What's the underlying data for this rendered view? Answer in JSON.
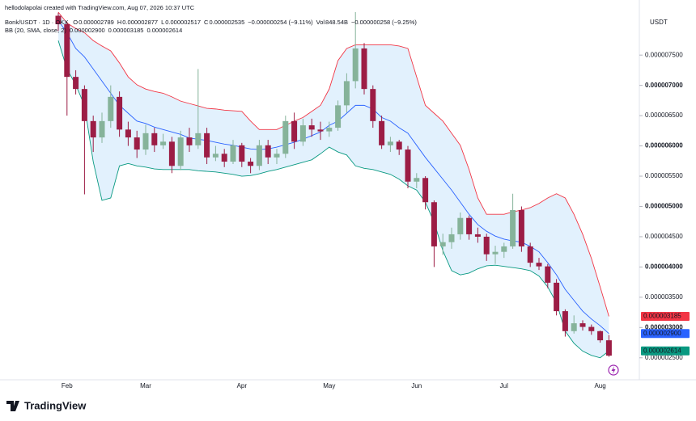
{
  "header": {
    "attribution": "hellodolapolai created with TradingView.com, Aug 07, 2026 10:37 UTC",
    "symbol": "Bonk/USDT · 1D · OKX",
    "ohlc": [
      {
        "label": "O",
        "value": "0.000002789"
      },
      {
        "label": "H",
        "value": "0.000002877"
      },
      {
        "label": "L",
        "value": "0.000002517"
      },
      {
        "label": "C",
        "value": "0.000002535"
      }
    ],
    "change": "−0.000000254 (−9.11%)",
    "volume_label": "Vol",
    "volume": "848.54B",
    "volume_change": "−0.000000258 (−9.25%)",
    "currency": "USDT",
    "logo": "TradingView"
  },
  "chart_data": {
    "type": "candlestick",
    "categories": [
      null,
      "Feb",
      null,
      null,
      null,
      null,
      null,
      null,
      null,
      null,
      "Mar",
      null,
      null,
      null,
      null,
      null,
      null,
      null,
      null,
      null,
      null,
      "Apr",
      null,
      null,
      null,
      null,
      null,
      null,
      null,
      null,
      null,
      "May",
      null,
      null,
      null,
      null,
      null,
      null,
      null,
      null,
      null,
      "Jun",
      null,
      null,
      null,
      null,
      null,
      null,
      null,
      null,
      null,
      "Jul",
      null,
      null,
      null,
      null,
      null,
      null,
      null,
      null,
      null,
      null,
      "Aug",
      null
    ],
    "open": [
      8.15e-06,
      8.01e-06,
      7.14e-06,
      6.94e-06,
      6.41e-06,
      6.14e-06,
      6.41e-06,
      6.81e-06,
      6.27e-06,
      6.14e-06,
      5.94e-06,
      6.21e-06,
      6.01e-06,
      6.07e-06,
      5.67e-06,
      6.14e-06,
      6.01e-06,
      6.21e-06,
      5.81e-06,
      5.87e-06,
      5.74e-06,
      6.01e-06,
      5.74e-06,
      5.67e-06,
      6.01e-06,
      5.81e-06,
      5.87e-06,
      6.41e-06,
      6.07e-06,
      6.34e-06,
      6.27e-06,
      6.24e-06,
      6.3e-06,
      6.67e-06,
      7.07e-06,
      7.61e-06,
      6.94e-06,
      6.41e-06,
      6.01e-06,
      6.07e-06,
      5.94e-06,
      5.41e-06,
      5.47e-06,
      5.07e-06,
      4.34e-06,
      4.41e-06,
      4.54e-06,
      4.81e-06,
      4.54e-06,
      4.5e-06,
      4.21e-06,
      4.25e-06,
      4.34e-06,
      4.94e-06,
      4.34e-06,
      4.07e-06,
      4.01e-06,
      3.74e-06,
      3.27e-06,
      2.94e-06,
      3.07e-06,
      3.01e-06,
      2.94e-06,
      2.789e-06
    ],
    "high": [
      8.2e-06,
      8.05e-06,
      7.25e-06,
      7e-06,
      6.5e-06,
      6.55e-06,
      7e-06,
      6.9e-06,
      6.4e-06,
      6.25e-06,
      6.35e-06,
      6.3e-06,
      6.2e-06,
      6.15e-06,
      6.25e-06,
      6.3e-06,
      7.27e-06,
      6.3e-06,
      6e-06,
      5.95e-06,
      6.1e-06,
      6.05e-06,
      5.8e-06,
      6.1e-06,
      6.1e-06,
      5.95e-06,
      6.5e-06,
      6.55e-06,
      6.45e-06,
      6.45e-06,
      6.4e-06,
      6.4e-06,
      6.75e-06,
      7.2e-06,
      8.21e-06,
      7.7e-06,
      7e-06,
      6.5e-06,
      6.15e-06,
      6.1e-06,
      6e-06,
      5.55e-06,
      5.5e-06,
      5.1e-06,
      4.55e-06,
      4.65e-06,
      4.9e-06,
      4.85e-06,
      4.65e-06,
      4.55e-06,
      4.35e-06,
      4.4e-06,
      5.21e-06,
      5e-06,
      4.4e-06,
      4.15e-06,
      4.05e-06,
      3.8e-06,
      3.3e-06,
      3.2e-06,
      3.12e-06,
      3.05e-06,
      2.95e-06,
      2.877e-06
    ],
    "low": [
      7.9e-06,
      6.5e-06,
      6.85e-06,
      5.2e-06,
      5.9e-06,
      6.05e-06,
      6.3e-06,
      6.15e-06,
      6e-06,
      5.8e-06,
      5.85e-06,
      5.9e-06,
      5.95e-06,
      5.55e-06,
      5.6e-06,
      5.9e-06,
      5.95e-06,
      5.7e-06,
      5.75e-06,
      5.65e-06,
      5.7e-06,
      5.65e-06,
      5.55e-06,
      5.6e-06,
      5.7e-06,
      5.7e-06,
      5.8e-06,
      5.95e-06,
      6e-06,
      6.15e-06,
      6.1e-06,
      6.15e-06,
      6.25e-06,
      6.55e-06,
      6.95e-06,
      6.85e-06,
      6.3e-06,
      5.95e-06,
      5.9e-06,
      5.85e-06,
      5.3e-06,
      5.3e-06,
      4.95e-06,
      4e-06,
      4.2e-06,
      4.3e-06,
      4.45e-06,
      4.45e-06,
      4.4e-06,
      4.1e-06,
      4.05e-06,
      4.15e-06,
      4.3e-06,
      4.25e-06,
      4e-06,
      3.95e-06,
      3.65e-06,
      3.2e-06,
      2.85e-06,
      2.9e-06,
      2.95e-06,
      2.88e-06,
      2.75e-06,
      2.517e-06
    ],
    "close": [
      8.01e-06,
      7.14e-06,
      6.94e-06,
      6.41e-06,
      6.14e-06,
      6.41e-06,
      6.81e-06,
      6.27e-06,
      6.14e-06,
      5.94e-06,
      6.21e-06,
      6.01e-06,
      6.07e-06,
      5.67e-06,
      6.14e-06,
      6.01e-06,
      6.21e-06,
      5.81e-06,
      5.87e-06,
      5.74e-06,
      6.01e-06,
      5.74e-06,
      5.67e-06,
      6.01e-06,
      5.81e-06,
      5.87e-06,
      6.41e-06,
      6.07e-06,
      6.34e-06,
      6.27e-06,
      6.24e-06,
      6.3e-06,
      6.67e-06,
      7.07e-06,
      7.61e-06,
      6.94e-06,
      6.41e-06,
      6.01e-06,
      6.07e-06,
      5.94e-06,
      5.41e-06,
      5.47e-06,
      5.07e-06,
      4.34e-06,
      4.41e-06,
      4.54e-06,
      4.81e-06,
      4.54e-06,
      4.5e-06,
      4.21e-06,
      4.25e-06,
      4.34e-06,
      4.94e-06,
      4.34e-06,
      4.07e-06,
      4.01e-06,
      3.74e-06,
      3.27e-06,
      2.94e-06,
      3.07e-06,
      3.01e-06,
      2.94e-06,
      2.789e-06,
      2.535e-06
    ],
    "up_color": "#86b39a",
    "down_color": "#9c1d45",
    "bollinger": {
      "label": "BB (20, SMA, close, 2)",
      "fill": "rgba(33,150,243,0.13)",
      "series": [
        {
          "color": "#2962ff",
          "value_label": "0.000002900",
          "values": [
            8.07e-06,
            7.87e-06,
            7.61e-06,
            7.47e-06,
            7.27e-06,
            7.07e-06,
            6.87e-06,
            6.67e-06,
            6.54e-06,
            6.41e-06,
            6.37e-06,
            6.31e-06,
            6.27e-06,
            6.23e-06,
            6.19e-06,
            6.13e-06,
            6.11e-06,
            6.09e-06,
            6.06e-06,
            6.03e-06,
            6.01e-06,
            5.98e-06,
            5.95e-06,
            5.94e-06,
            5.95e-06,
            5.98e-06,
            6.02e-06,
            6.06e-06,
            6.11e-06,
            6.17e-06,
            6.23e-06,
            6.34e-06,
            6.41e-06,
            6.54e-06,
            6.67e-06,
            6.67e-06,
            6.61e-06,
            6.47e-06,
            6.41e-06,
            6.3e-06,
            6.21e-06,
            6.01e-06,
            5.81e-06,
            5.63e-06,
            5.45e-06,
            5.27e-06,
            5.07e-06,
            4.87e-06,
            4.7e-06,
            4.59e-06,
            4.51e-06,
            4.46e-06,
            4.43e-06,
            4.41e-06,
            4.34e-06,
            4.25e-06,
            4.07e-06,
            3.87e-06,
            3.63e-06,
            3.45e-06,
            3.27e-06,
            3.14e-06,
            3.03e-06,
            2.9e-06
          ]
        },
        {
          "color": "#f23645",
          "value_label": "0.000003185",
          "values": [
            8.21e-06,
            8.03e-06,
            7.94e-06,
            7.87e-06,
            7.74e-06,
            7.65e-06,
            7.57e-06,
            7.37e-06,
            7.14e-06,
            7.01e-06,
            6.94e-06,
            6.9e-06,
            6.87e-06,
            6.81e-06,
            6.74e-06,
            6.7e-06,
            6.66e-06,
            6.62e-06,
            6.61e-06,
            6.59e-06,
            6.58e-06,
            6.57e-06,
            6.41e-06,
            6.27e-06,
            6.27e-06,
            6.27e-06,
            6.34e-06,
            6.41e-06,
            6.47e-06,
            6.57e-06,
            6.67e-06,
            6.94e-06,
            7.41e-06,
            7.61e-06,
            7.67e-06,
            7.67e-06,
            7.67e-06,
            7.67e-06,
            7.67e-06,
            7.65e-06,
            7.61e-06,
            7.14e-06,
            6.67e-06,
            6.54e-06,
            6.41e-06,
            6.21e-06,
            6.01e-06,
            5.61e-06,
            5.14e-06,
            4.87e-06,
            4.87e-06,
            4.87e-06,
            4.91e-06,
            4.94e-06,
            4.98e-06,
            5.05e-06,
            5.14e-06,
            5.21e-06,
            5.14e-06,
            4.87e-06,
            4.54e-06,
            4.14e-06,
            3.67e-06,
            3.185e-06
          ]
        },
        {
          "color": "#089981",
          "value_label": "0.000002614",
          "values": [
            7.74e-06,
            7.27e-06,
            7.01e-06,
            6.67e-06,
            5.74e-06,
            5.1e-06,
            5.14e-06,
            5.67e-06,
            5.71e-06,
            5.67e-06,
            5.65e-06,
            5.62e-06,
            5.61e-06,
            5.61e-06,
            5.61e-06,
            5.61e-06,
            5.59e-06,
            5.58e-06,
            5.57e-06,
            5.55e-06,
            5.53e-06,
            5.5e-06,
            5.51e-06,
            5.54e-06,
            5.58e-06,
            5.61e-06,
            5.65e-06,
            5.69e-06,
            5.73e-06,
            5.77e-06,
            5.87e-06,
            5.98e-06,
            5.9e-06,
            5.85e-06,
            5.67e-06,
            5.63e-06,
            5.61e-06,
            5.57e-06,
            5.53e-06,
            5.45e-06,
            5.34e-06,
            5.27e-06,
            5.07e-06,
            4.74e-06,
            4.27e-06,
            3.94e-06,
            3.87e-06,
            3.9e-06,
            3.97e-06,
            4.02e-06,
            4.03e-06,
            4.01e-06,
            3.99e-06,
            3.97e-06,
            3.94e-06,
            3.85e-06,
            3.67e-06,
            3.41e-06,
            2.94e-06,
            2.74e-06,
            2.61e-06,
            2.54e-06,
            2.5e-06,
            2.614e-06
          ]
        }
      ]
    },
    "ylim": [
      2.27e-06,
      8.21e-06
    ],
    "yticks": [
      {
        "value": 2.5e-06,
        "label": "0.000002500"
      },
      {
        "value": 3e-06,
        "label": "0.000003000"
      },
      {
        "value": 3.5e-06,
        "label": "0.000003500"
      },
      {
        "value": 4e-06,
        "label": "0.000004000"
      },
      {
        "value": 4.5e-06,
        "label": "0.000004500"
      },
      {
        "value": 5e-06,
        "label": "0.000005000"
      },
      {
        "value": 5.5e-06,
        "label": "0.000005500"
      },
      {
        "value": 6e-06,
        "label": "0.000006000"
      },
      {
        "value": 6.5e-06,
        "label": "0.000006500"
      },
      {
        "value": 7e-06,
        "label": "0.000007000"
      },
      {
        "value": 7.5e-06,
        "label": "0.000007500"
      }
    ]
  }
}
